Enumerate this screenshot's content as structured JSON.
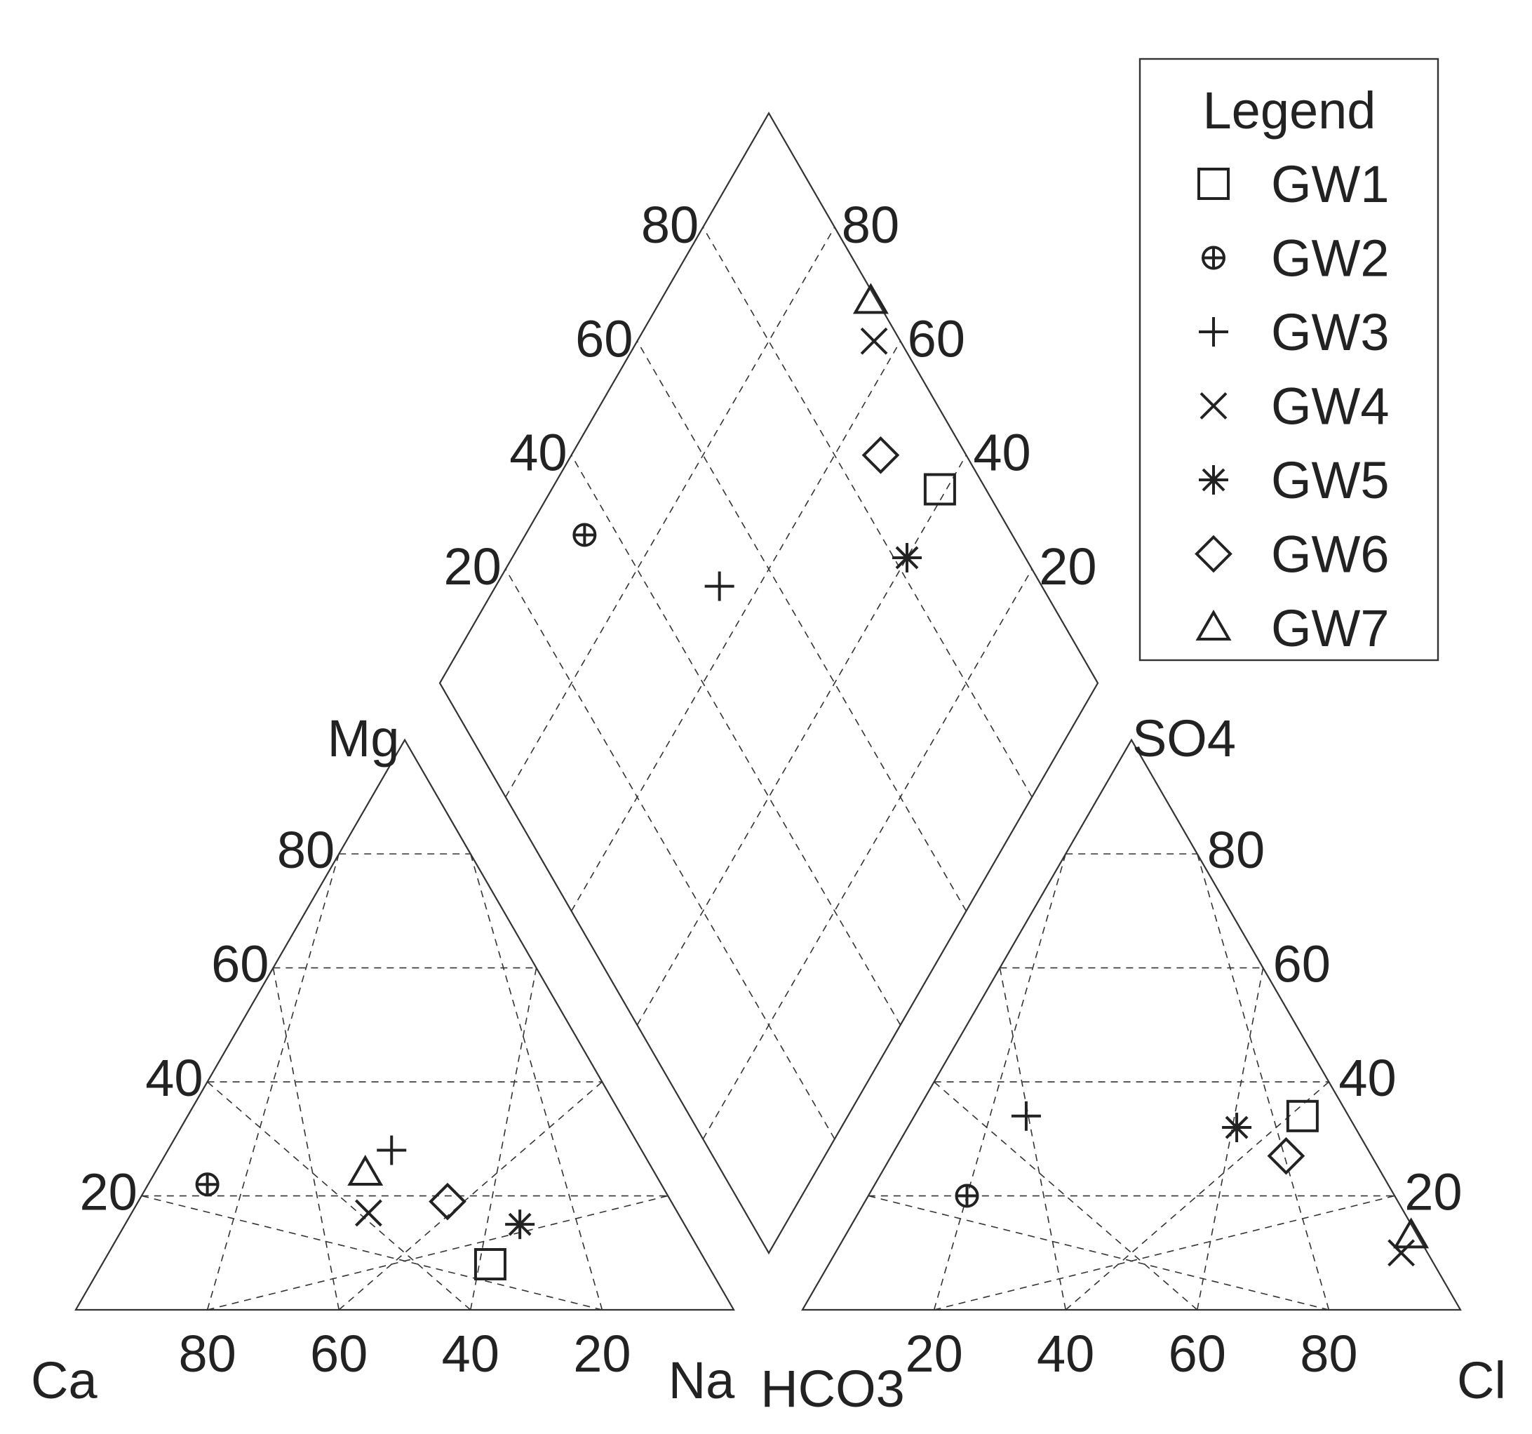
{
  "chart_data": {
    "type": "scatter",
    "subtype": "piper",
    "grid": true,
    "legend_position": "top-right",
    "legend": {
      "title": "Legend",
      "items": [
        {
          "name": "GW1",
          "marker": "square"
        },
        {
          "name": "GW2",
          "marker": "circle-plus"
        },
        {
          "name": "GW3",
          "marker": "plus"
        },
        {
          "name": "GW4",
          "marker": "x"
        },
        {
          "name": "GW5",
          "marker": "asterisk"
        },
        {
          "name": "GW6",
          "marker": "diamond"
        },
        {
          "name": "GW7",
          "marker": "triangle"
        }
      ]
    },
    "cation_triangle": {
      "labels": {
        "left": "Ca",
        "right": "Na",
        "top": "Mg"
      },
      "bottom_ticks": [
        "80",
        "60",
        "40",
        "20"
      ],
      "left_ticks": [
        "20",
        "40",
        "60",
        "80"
      ]
    },
    "anion_triangle": {
      "labels": {
        "left": "HCO3",
        "right": "Cl",
        "top": "SO4"
      },
      "bottom_ticks": [
        "20",
        "40",
        "60",
        "80"
      ],
      "right_ticks": [
        "20",
        "40",
        "60",
        "80"
      ]
    },
    "diamond": {
      "left_ticks": [
        "20",
        "40",
        "60",
        "80"
      ],
      "right_ticks": [
        "20",
        "40",
        "60",
        "80"
      ]
    },
    "samples": [
      {
        "name": "GW1",
        "cation": {
          "Ca": 33,
          "Mg": 8,
          "Na": 59
        },
        "anion": {
          "SO4": 34,
          "Cl": 59,
          "HCO3": 7
        },
        "diamond": {
          "SO4_Cl": 93,
          "Ca_Mg": 41
        }
      },
      {
        "name": "GW2",
        "cation": {
          "Ca": 69,
          "Mg": 22,
          "Na": 9
        },
        "anion": {
          "SO4": 20,
          "Cl": 15,
          "HCO3": 65
        },
        "diamond": {
          "SO4_Cl": 35,
          "Ca_Mg": 91
        }
      },
      {
        "name": "GW3",
        "cation": {
          "Ca": 38,
          "Mg": 28,
          "Na": 34
        },
        "anion": {
          "SO4": 34,
          "Cl": 17,
          "HCO3": 49
        },
        "diamond": {
          "SO4_Cl": 51,
          "Ca_Mg": 66
        }
      },
      {
        "name": "GW4",
        "cation": {
          "Ca": 47,
          "Mg": 17,
          "Na": 36
        },
        "anion": {
          "SO4": 10,
          "Cl": 86,
          "HCO3": 4
        },
        "diamond": {
          "SO4_Cl": 96,
          "Ca_Mg": 64
        }
      },
      {
        "name": "GW5",
        "cation": {
          "Ca": 25,
          "Mg": 15,
          "Na": 60
        },
        "anion": {
          "SO4": 32,
          "Cl": 50,
          "HCO3": 18
        },
        "diamond": {
          "SO4_Cl": 82,
          "Ca_Mg": 40
        }
      },
      {
        "name": "GW6",
        "cation": {
          "Ca": 34,
          "Mg": 19,
          "Na": 47
        },
        "anion": {
          "SO4": 27,
          "Cl": 60,
          "HCO3": 13
        },
        "diamond": {
          "SO4_Cl": 87,
          "Ca_Mg": 53
        }
      },
      {
        "name": "GW7",
        "cation": {
          "Ca": 44,
          "Mg": 24,
          "Na": 32
        },
        "anion": {
          "SO4": 13,
          "Cl": 86,
          "HCO3": 1
        },
        "diamond": {
          "SO4_Cl": 99,
          "Ca_Mg": 68
        }
      }
    ]
  }
}
